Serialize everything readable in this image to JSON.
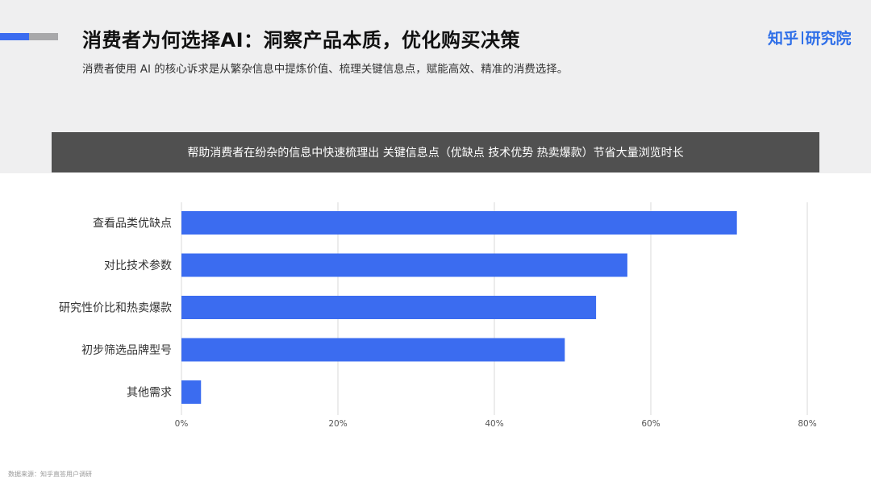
{
  "header": {
    "title": "消费者为何选择AI：洞察产品本质，优化购买决策",
    "subtitle": "消费者使用 AI 的核心诉求是从繁杂信息中提炼价值、梳理关键信息点，赋能高效、精准的消费选择。",
    "logo_left": "知乎",
    "logo_right": "研究院"
  },
  "banner": {
    "text": "帮助消费者在纷杂的信息中快速梳理出 关键信息点（优缺点 技术优势 热卖爆款）节省大量浏览时长"
  },
  "colors": {
    "bar": "#3b6cf0",
    "accent": "#3b6cf0",
    "banner_bg": "#505050",
    "grid": "#d8d8d8"
  },
  "chart_data": {
    "type": "bar",
    "orientation": "horizontal",
    "categories": [
      "查看品类优缺点",
      "对比技术参数",
      "研究性价比和热卖爆款",
      "初步筛选品牌型号",
      "其他需求"
    ],
    "values": [
      71,
      57,
      53,
      49,
      2.5
    ],
    "xlim": [
      0,
      80
    ],
    "xticks": [
      "0%",
      "20%",
      "40%",
      "60%",
      "80%"
    ],
    "grid": true
  },
  "footer": {
    "source": "数据来源：知乎直答用户调研"
  }
}
